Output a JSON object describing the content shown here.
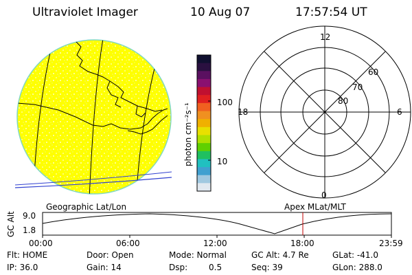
{
  "header": {
    "instrument": "Ultraviolet Imager",
    "date": "10 Aug 07",
    "time": "17:57:54 UT"
  },
  "colorbar": {
    "unit_label": "photon cm⁻²s⁻¹",
    "tick_labels": [
      "100",
      "10"
    ],
    "colors": [
      "#101030",
      "#2a1040",
      "#5a1060",
      "#8a1070",
      "#c01030",
      "#e02020",
      "#f06020",
      "#f09020",
      "#f0b000",
      "#e8e000",
      "#b0e000",
      "#60d000",
      "#20c060",
      "#20c0c0",
      "#40a0d0",
      "#a0c8e0",
      "#e0e8f0"
    ]
  },
  "geo_panel": {
    "label": "Geographic Lat/Lon",
    "disk_color": "#ffff00"
  },
  "polar_panel": {
    "label": "Apex  MLat/MLT",
    "mlt_labels": {
      "top": "12",
      "left": "18",
      "right": "6",
      "bottom": "0"
    },
    "lat_labels": [
      "60",
      "70",
      "80"
    ]
  },
  "altitude_plot": {
    "axis_label": "GC Alt",
    "y_ticks": [
      "9.0",
      "1.8"
    ],
    "x_ticks": [
      "00:00",
      "06:00",
      "12:00",
      "18:00",
      "23:59"
    ],
    "marker_color": "#c00000"
  },
  "footer": {
    "flt": "Flt: HOME",
    "door": "Door: Open",
    "mode": "Mode: Normal",
    "gc_alt": "GC Alt: 4.7 Re",
    "glat": "GLat: -41.0",
    "ip": "IP: 36.0",
    "gain": "Gain: 14",
    "dsp_label": "Dsp:",
    "dsp_value": "0.5",
    "seq": "Seq: 39",
    "glon": "GLon: 288.0"
  }
}
